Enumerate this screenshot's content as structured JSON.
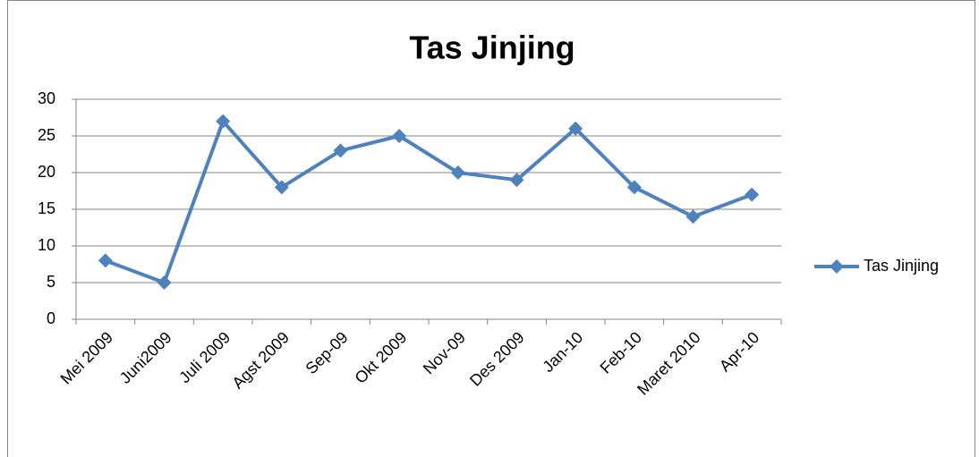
{
  "chart_data": {
    "type": "line",
    "title": "Tas Jinjing",
    "categories": [
      "Mei 2009",
      "Juni2009",
      "Juli 2009",
      "Agst 2009",
      "Sep-09",
      "Okt 2009",
      "Nov-09",
      "Des 2009",
      "Jan-10",
      "Feb-10",
      "Maret 2010",
      "Apr-10"
    ],
    "series": [
      {
        "name": "Tas Jinjing",
        "color": "#4f81bd",
        "values": [
          8,
          5,
          27,
          18,
          23,
          25,
          20,
          19,
          26,
          18,
          14,
          17
        ]
      }
    ],
    "ylim": [
      0,
      30
    ],
    "yticks": [
      0,
      5,
      10,
      15,
      20,
      25,
      30
    ],
    "grid": true,
    "legend": "right"
  }
}
